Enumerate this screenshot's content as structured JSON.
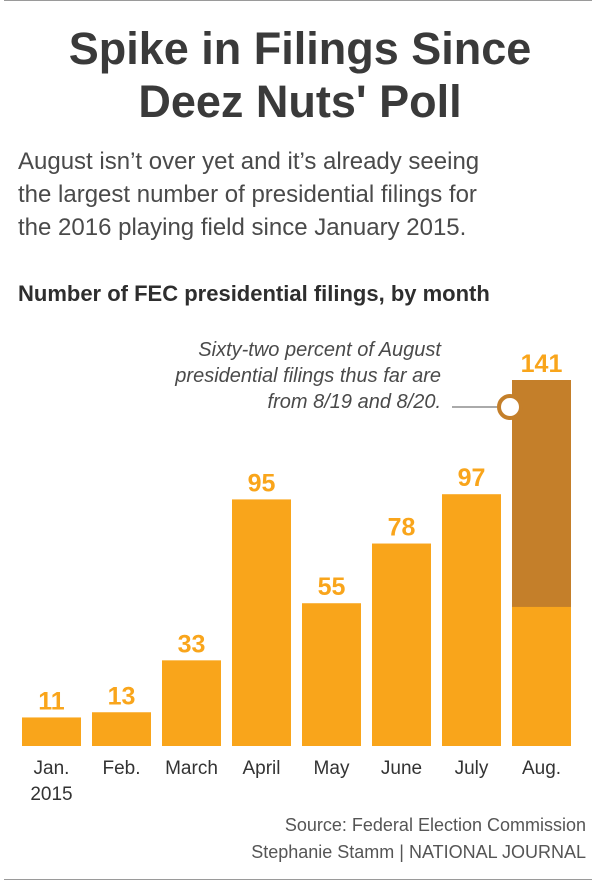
{
  "header": {
    "title_line1": "Spike in Filings Since",
    "title_line2": "Deez Nuts' Poll",
    "subtitle_line1": "August isn’t over yet and it’s already seeing",
    "subtitle_line2": "the largest number of presidential filings for",
    "subtitle_line3": "the 2016 playing field since January 2015."
  },
  "chart_data": {
    "type": "bar",
    "title": "Number of FEC presidential filings, by month",
    "categories": [
      [
        "Jan.",
        "2015"
      ],
      [
        "Feb."
      ],
      [
        "March"
      ],
      [
        "April"
      ],
      [
        "May"
      ],
      [
        "June"
      ],
      [
        "July"
      ],
      [
        "Aug."
      ]
    ],
    "values": [
      11,
      13,
      33,
      95,
      55,
      78,
      97,
      141
    ],
    "highlight": {
      "category_index": 7,
      "portion": 0.62
    },
    "annotation": [
      "Sixty-two percent of August",
      "presidential filings thus far are",
      "from 8/19 and 8/20."
    ],
    "ylim": [
      0,
      141
    ],
    "grid": false,
    "colors": {
      "bar": "#F9A51B",
      "highlight": "#C47F2A",
      "label": "#F9A51B"
    }
  },
  "footer": {
    "source": "Source: Federal Election Commission",
    "credit": "Stephanie Stamm | NATIONAL JOURNAL"
  }
}
